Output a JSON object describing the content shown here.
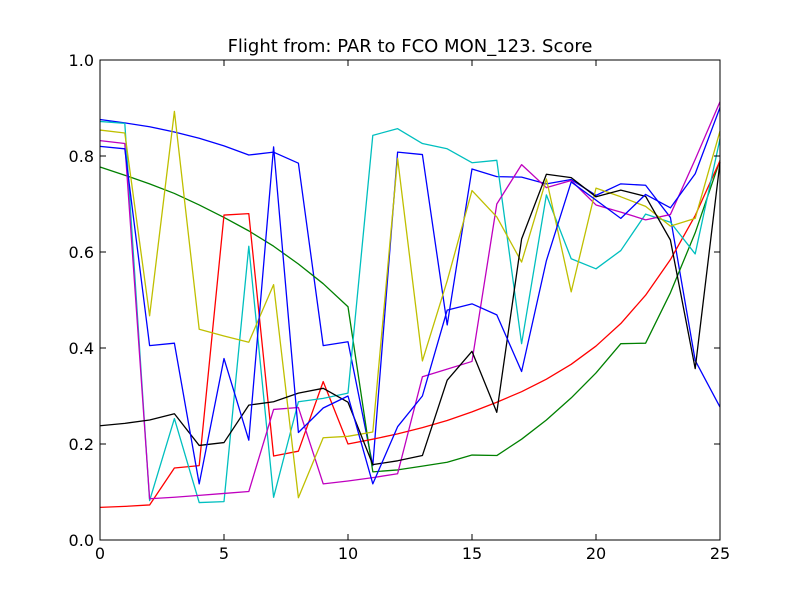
{
  "chart_data": {
    "type": "line",
    "title": "Flight from: PAR to FCO  MON_123. Score",
    "xlabel": "",
    "ylabel": "",
    "xlim": [
      0,
      25
    ],
    "ylim": [
      0.0,
      1.0
    ],
    "xticks": [
      0,
      5,
      10,
      15,
      20,
      25
    ],
    "xtick_labels": [
      "0",
      "5",
      "10",
      "15",
      "20",
      "25"
    ],
    "yticks": [
      0.0,
      0.2,
      0.4,
      0.6,
      0.8,
      1.0
    ],
    "ytick_labels": [
      "0.0",
      "0.2",
      "0.4",
      "0.6",
      "0.8",
      "1.0"
    ],
    "grid": false,
    "x": [
      0,
      1,
      2,
      3,
      4,
      5,
      6,
      7,
      8,
      9,
      10,
      11,
      12,
      13,
      14,
      15,
      16,
      17,
      18,
      19,
      20,
      21,
      22,
      23,
      24,
      25
    ],
    "series": [
      {
        "color": "#0000ff",
        "values": [
          0.876,
          0.869,
          0.861,
          0.85,
          0.837,
          0.821,
          0.802,
          0.808,
          0.785,
          0.405,
          0.413,
          0.155,
          0.808,
          0.803,
          0.448,
          0.773,
          0.757,
          0.756,
          0.742,
          0.751,
          0.718,
          0.742,
          0.739,
          0.672,
          0.374,
          0.277
        ]
      },
      {
        "color": "#008000",
        "values": [
          0.777,
          0.76,
          0.742,
          0.722,
          0.698,
          0.672,
          0.644,
          0.612,
          0.575,
          0.534,
          0.486,
          0.142,
          0.146,
          0.154,
          0.162,
          0.177,
          0.176,
          0.21,
          0.25,
          0.296,
          0.348,
          0.409,
          0.41,
          0.515,
          0.64,
          0.791
        ]
      },
      {
        "color": "#ff0000",
        "values": [
          0.068,
          0.07,
          0.073,
          0.15,
          0.155,
          0.677,
          0.68,
          0.175,
          0.185,
          0.33,
          0.2,
          0.21,
          0.221,
          0.234,
          0.249,
          0.267,
          0.287,
          0.309,
          0.335,
          0.366,
          0.404,
          0.451,
          0.51,
          0.584,
          0.676,
          0.79
        ]
      },
      {
        "color": "#00bfbf",
        "values": [
          0.872,
          0.868,
          0.082,
          0.253,
          0.078,
          0.08,
          0.612,
          0.089,
          0.288,
          0.295,
          0.306,
          0.843,
          0.857,
          0.826,
          0.815,
          0.786,
          0.791,
          0.409,
          0.719,
          0.586,
          0.565,
          0.603,
          0.679,
          0.662,
          0.596,
          0.836
        ]
      },
      {
        "color": "#bf00bf",
        "values": [
          0.832,
          0.826,
          0.086,
          0.089,
          0.093,
          0.097,
          0.101,
          0.272,
          0.276,
          0.117,
          0.123,
          0.13,
          0.138,
          0.34,
          0.356,
          0.372,
          0.7,
          0.782,
          0.734,
          0.749,
          0.698,
          0.683,
          0.667,
          0.678,
          0.793,
          0.913
        ]
      },
      {
        "color": "#bfbf00",
        "values": [
          0.854,
          0.848,
          0.467,
          0.893,
          0.439,
          0.425,
          0.412,
          0.532,
          0.088,
          0.213,
          0.216,
          0.225,
          0.795,
          0.373,
          0.54,
          0.728,
          0.673,
          0.579,
          0.752,
          0.517,
          0.733,
          0.715,
          0.695,
          0.654,
          0.67,
          0.852
        ]
      },
      {
        "color": "#000000",
        "values": [
          0.238,
          0.243,
          0.25,
          0.263,
          0.197,
          0.203,
          0.281,
          0.288,
          0.306,
          0.316,
          0.287,
          0.157,
          0.165,
          0.176,
          0.333,
          0.393,
          0.266,
          0.627,
          0.762,
          0.755,
          0.715,
          0.729,
          0.716,
          0.625,
          0.357,
          0.787
        ]
      },
      {
        "color": "#0000ff",
        "values": [
          0.82,
          0.815,
          0.405,
          0.41,
          0.117,
          0.378,
          0.208,
          0.819,
          0.224,
          0.275,
          0.3,
          0.117,
          0.236,
          0.3,
          0.479,
          0.492,
          0.469,
          0.351,
          0.582,
          0.746,
          0.708,
          0.67,
          0.72,
          0.692,
          0.763,
          0.901
        ]
      }
    ]
  }
}
